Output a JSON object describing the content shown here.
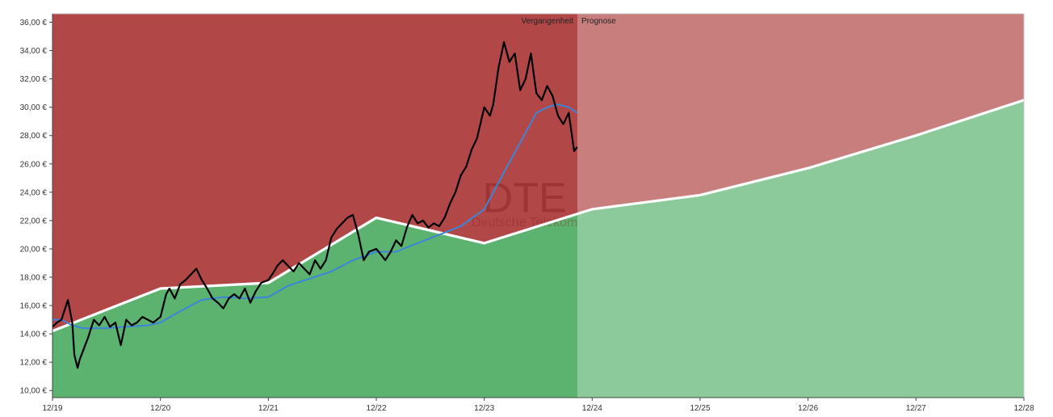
{
  "chart_data": {
    "type": "area",
    "title": "",
    "watermark": {
      "ticker": "DTE",
      "company": "Deutsche Telekom"
    },
    "period_labels": {
      "past": "Vergangenheit",
      "forecast": "Prognose"
    },
    "x_tick_labels": [
      "12/19",
      "12/20",
      "12/21",
      "12/22",
      "12/23",
      "12/24",
      "12/25",
      "12/26",
      "12/27",
      "12/28"
    ],
    "y_tick_labels": [
      "10,00 €",
      "12,00 €",
      "14,00 €",
      "16,00 €",
      "18,00 €",
      "20,00 €",
      "22,00 €",
      "24,00 €",
      "26,00 €",
      "28,00 €",
      "30,00 €",
      "32,00 €",
      "34,00 €",
      "36,00 €"
    ],
    "x_range": [
      2019.917,
      2028.917
    ],
    "ylim": [
      9.5,
      36.6
    ],
    "forecast_start": 2024.78,
    "colors": {
      "overvalued_zone": "#b24747",
      "undervalued_zone": "#5cb370",
      "fair_value_line": "#ffffff",
      "price_line": "#000000",
      "moving_average": "#3b86d8",
      "forecast_overlay": "rgba(255,255,255,0.30)"
    },
    "series": [
      {
        "key": "fair_value",
        "x": [
          2019.917,
          2020.917,
          2021.917,
          2022.917,
          2023.917,
          2024.917,
          2025.917,
          2026.917,
          2027.917,
          2028.917
        ],
        "values": [
          14.2,
          17.2,
          17.6,
          22.2,
          20.4,
          22.8,
          23.8,
          25.7,
          28.0,
          30.5
        ]
      },
      {
        "key": "price",
        "x": [
          2019.917,
          2019.96,
          2020.0,
          2020.06,
          2020.1,
          2020.12,
          2020.15,
          2020.17,
          2020.2,
          2020.25,
          2020.3,
          2020.35,
          2020.4,
          2020.45,
          2020.5,
          2020.55,
          2020.6,
          2020.65,
          2020.7,
          2020.75,
          2020.8,
          2020.85,
          2020.917,
          2020.97,
          2021.0,
          2021.05,
          2021.1,
          2021.15,
          2021.2,
          2021.25,
          2021.3,
          2021.35,
          2021.4,
          2021.45,
          2021.5,
          2021.55,
          2021.6,
          2021.65,
          2021.7,
          2021.75,
          2021.8,
          2021.85,
          2021.917,
          2021.97,
          2022.0,
          2022.05,
          2022.1,
          2022.15,
          2022.2,
          2022.25,
          2022.3,
          2022.35,
          2022.4,
          2022.45,
          2022.5,
          2022.55,
          2022.6,
          2022.65,
          2022.7,
          2022.75,
          2022.8,
          2022.85,
          2022.917,
          2022.97,
          2023.0,
          2023.05,
          2023.1,
          2023.15,
          2023.2,
          2023.25,
          2023.3,
          2023.35,
          2023.4,
          2023.45,
          2023.5,
          2023.55,
          2023.6,
          2023.65,
          2023.7,
          2023.75,
          2023.8,
          2023.85,
          2023.917,
          2023.97,
          2024.0,
          2024.05,
          2024.1,
          2024.15,
          2024.2,
          2024.25,
          2024.3,
          2024.35,
          2024.4,
          2024.45,
          2024.5,
          2024.55,
          2024.6,
          2024.65,
          2024.7,
          2024.75,
          2024.78
        ],
        "values": [
          14.5,
          14.8,
          15.0,
          16.4,
          14.8,
          12.5,
          11.6,
          12.2,
          12.8,
          13.8,
          15.0,
          14.6,
          15.2,
          14.5,
          14.8,
          13.2,
          15.0,
          14.6,
          14.8,
          15.2,
          15.0,
          14.8,
          15.2,
          16.8,
          17.2,
          16.5,
          17.5,
          17.8,
          18.2,
          18.6,
          17.8,
          17.2,
          16.5,
          16.2,
          15.8,
          16.5,
          16.8,
          16.5,
          17.2,
          16.2,
          17.0,
          17.6,
          17.8,
          18.4,
          18.8,
          19.2,
          18.8,
          18.4,
          19.0,
          18.6,
          18.2,
          19.2,
          18.6,
          19.2,
          20.8,
          21.4,
          21.8,
          22.2,
          22.4,
          21.0,
          19.2,
          19.8,
          20.0,
          19.5,
          19.2,
          19.8,
          20.6,
          20.2,
          21.5,
          22.4,
          21.8,
          22.0,
          21.5,
          21.8,
          21.6,
          22.2,
          23.2,
          24.0,
          25.2,
          25.8,
          27.0,
          27.8,
          30.0,
          29.4,
          30.2,
          32.8,
          34.6,
          33.2,
          33.8,
          31.2,
          32.0,
          33.8,
          31.0,
          30.5,
          31.5,
          30.8,
          29.4,
          28.8,
          29.6,
          26.9,
          27.2
        ]
      },
      {
        "key": "moving_average",
        "x": [
          2019.917,
          2020.0,
          2020.1,
          2020.2,
          2020.4,
          2020.6,
          2020.8,
          2020.917,
          2021.1,
          2021.3,
          2021.5,
          2021.7,
          2021.917,
          2022.1,
          2022.3,
          2022.5,
          2022.7,
          2022.917,
          2023.1,
          2023.3,
          2023.5,
          2023.7,
          2023.917,
          2024.1,
          2024.3,
          2024.4,
          2024.5,
          2024.6,
          2024.7,
          2024.78
        ],
        "values": [
          15.0,
          15.0,
          14.6,
          14.4,
          14.4,
          14.5,
          14.6,
          14.8,
          15.6,
          16.4,
          16.6,
          16.5,
          16.6,
          17.4,
          17.9,
          18.4,
          19.2,
          19.8,
          19.8,
          20.4,
          21.0,
          21.6,
          22.8,
          25.4,
          28.2,
          29.6,
          30.0,
          30.2,
          30.0,
          29.6
        ]
      }
    ],
    "grid": false,
    "legend": "none"
  }
}
